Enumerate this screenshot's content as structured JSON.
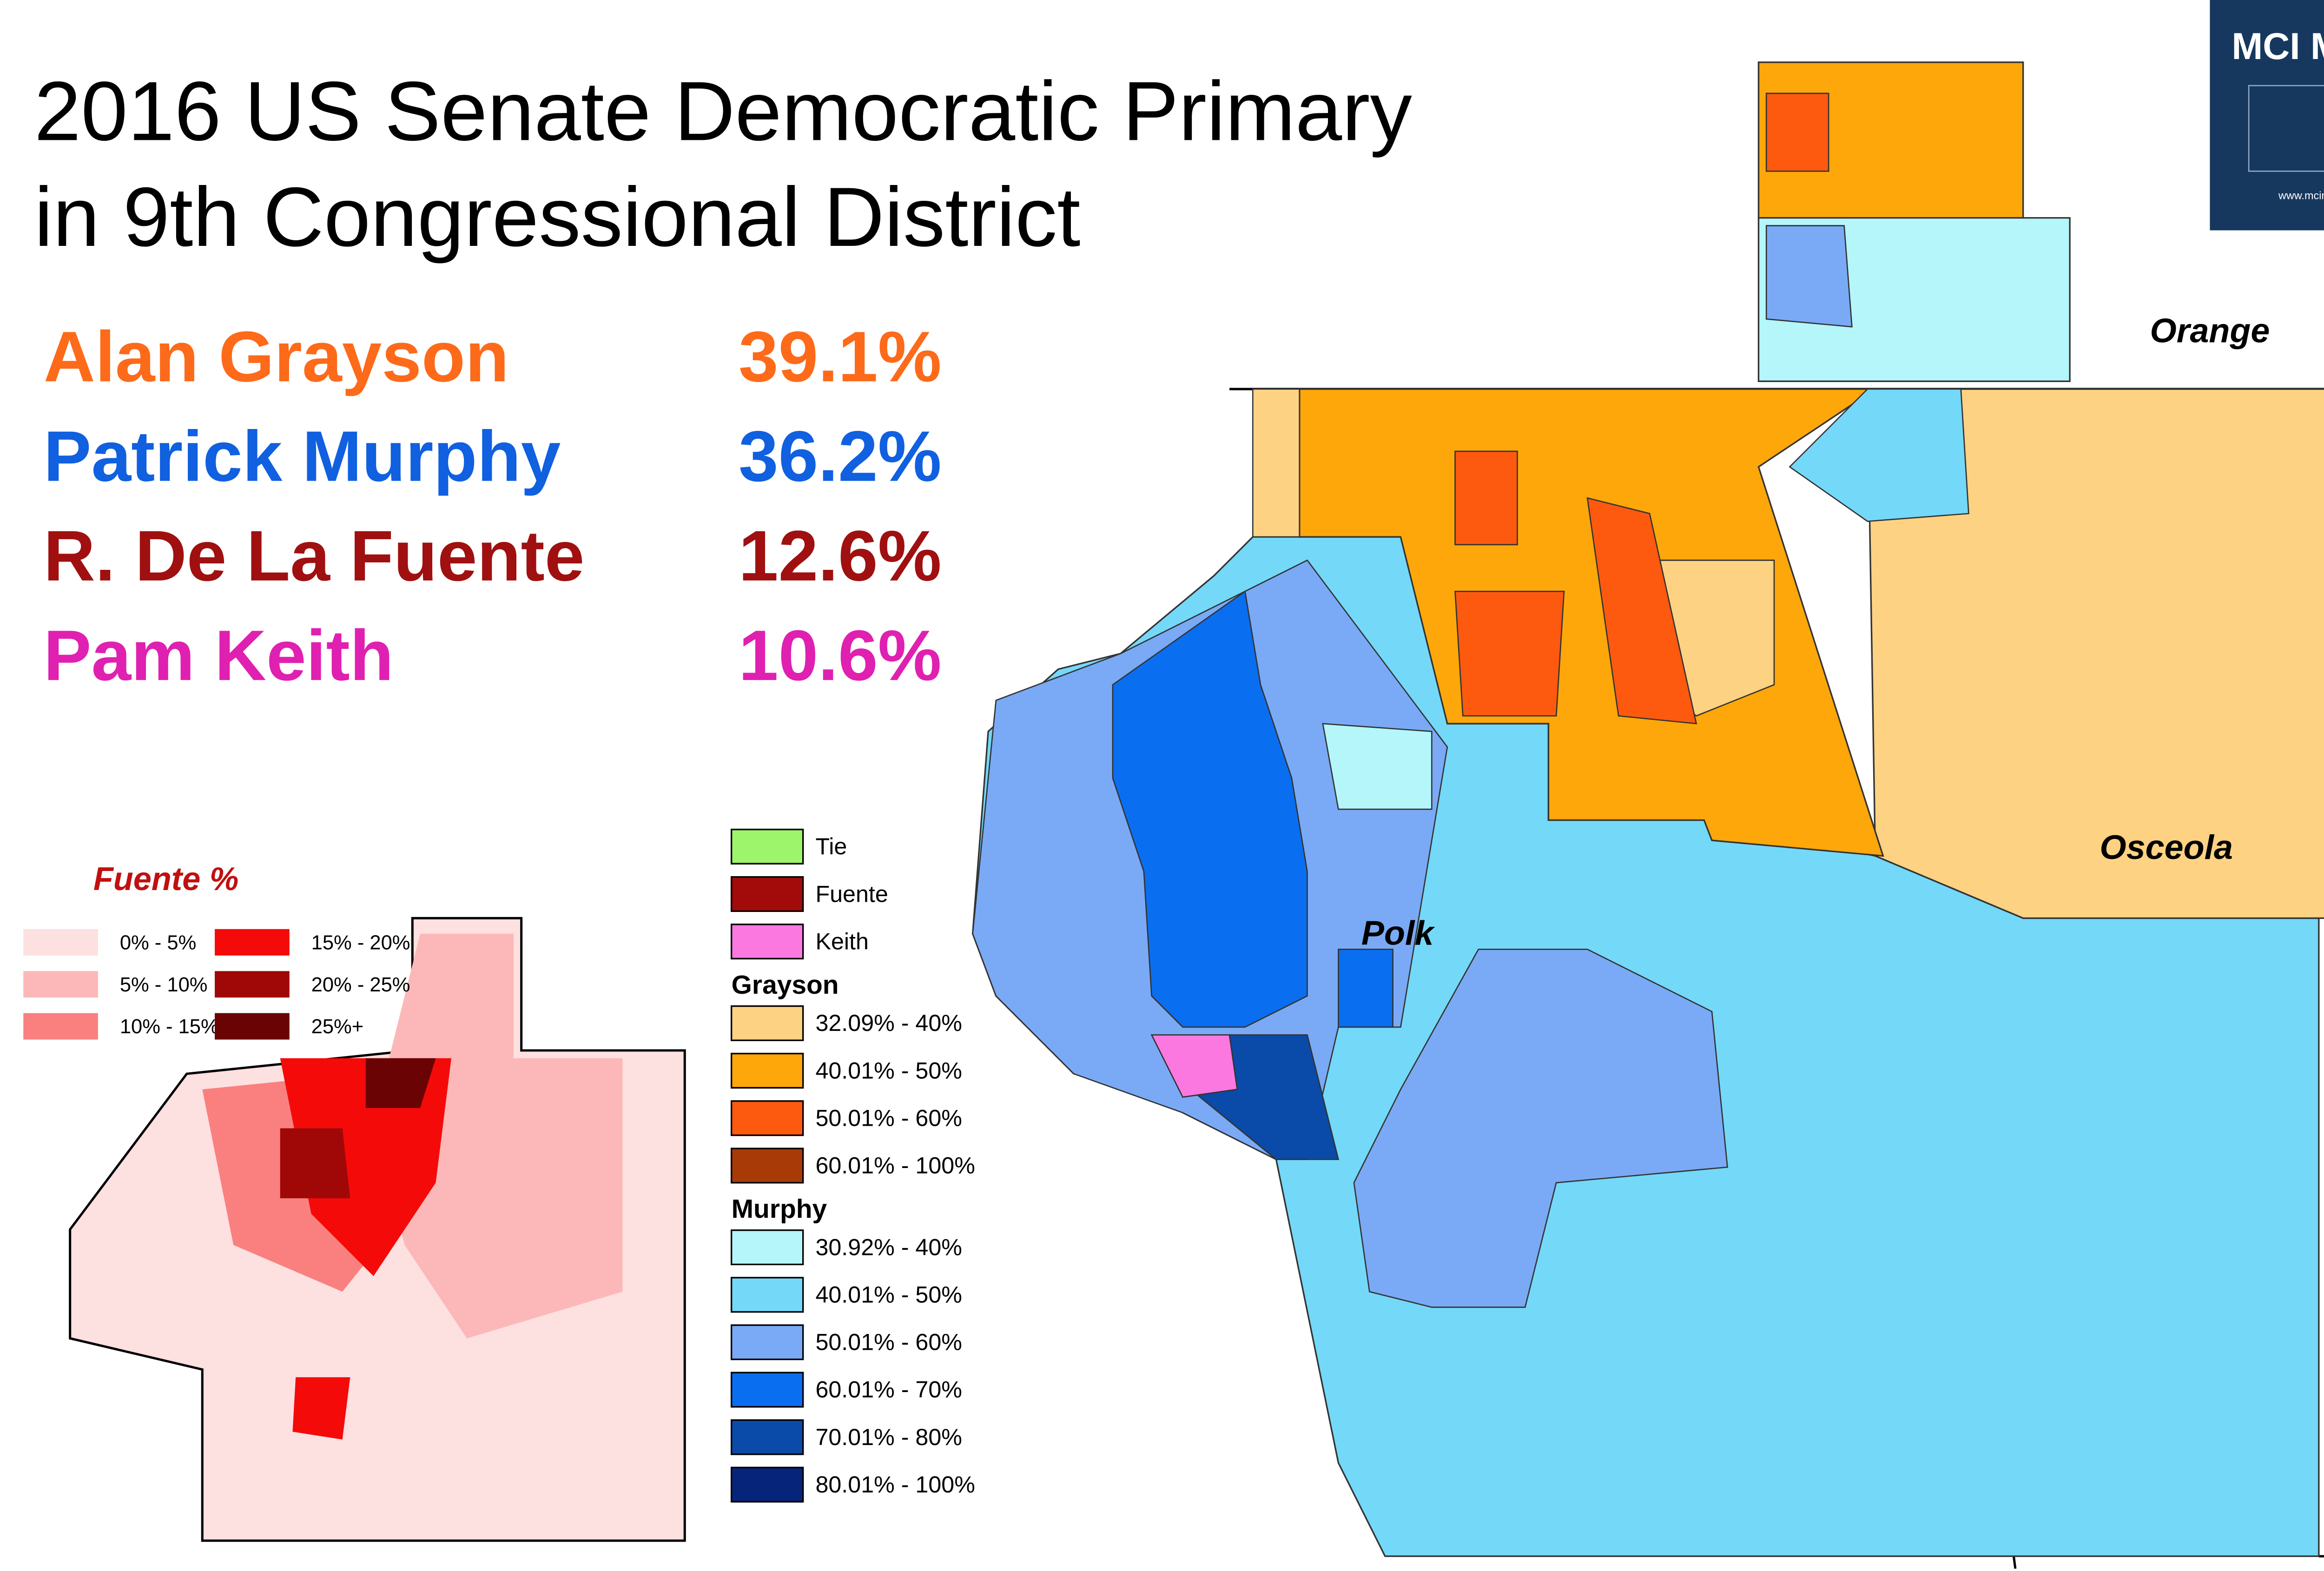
{
  "title": [
    "2016 US Senate Democratic Primary",
    "in 9th Congressional District"
  ],
  "results": [
    {
      "name": "Alan Grayson",
      "share": "39.1%",
      "color": "#fd6a1a"
    },
    {
      "name": "Patrick Murphy",
      "share": "36.2%",
      "color": "#1060e0"
    },
    {
      "name": "R. De La Fuente",
      "share": "12.6%",
      "color": "#a01010"
    },
    {
      "name": "Pam Keith",
      "share": "10.6%",
      "color": "#e020b0"
    }
  ],
  "legend": {
    "items": [
      {
        "label": "Tie",
        "color": "#9cf56a"
      },
      {
        "label": "Fuente",
        "color": "#a30a0a"
      },
      {
        "label": "Keith",
        "color": "#fa78e0"
      }
    ],
    "groups": [
      {
        "title": "Grayson",
        "items": [
          {
            "label": "32.09% - 40%",
            "color": "#fdd282"
          },
          {
            "label": "40.01% - 50%",
            "color": "#fda70a"
          },
          {
            "label": "50.01% - 60%",
            "color": "#fd5a10"
          },
          {
            "label": "60.01% - 100%",
            "color": "#a83a08"
          }
        ]
      },
      {
        "title": "Murphy",
        "items": [
          {
            "label": "30.92% - 40%",
            "color": "#b4f6fa"
          },
          {
            "label": "40.01% - 50%",
            "color": "#74d8f8"
          },
          {
            "label": "50.01% - 60%",
            "color": "#7aaaf5"
          },
          {
            "label": "60.01% - 70%",
            "color": "#0a6ef0"
          },
          {
            "label": "70.01% - 80%",
            "color": "#0a4aa8"
          },
          {
            "label": "80.01% - 100%",
            "color": "#06247a"
          }
        ]
      }
    ]
  },
  "inset_legend": {
    "title": "Fuente %",
    "items": [
      {
        "label": "0% - 5%",
        "color": "#fde0e0"
      },
      {
        "label": "5% - 10%",
        "color": "#fcb8b8"
      },
      {
        "label": "10% - 15%",
        "color": "#fa8080"
      },
      {
        "label": "15% - 20%",
        "color": "#f50a0a"
      },
      {
        "label": "20% - 25%",
        "color": "#a00808"
      },
      {
        "label": "25%+",
        "color": "#6a0404"
      }
    ]
  },
  "labels": [
    "Orange",
    "Osceola",
    "Polk"
  ],
  "logo": {
    "title": "MCI MAPS",
    "url": "www.mcimaps.com"
  }
}
